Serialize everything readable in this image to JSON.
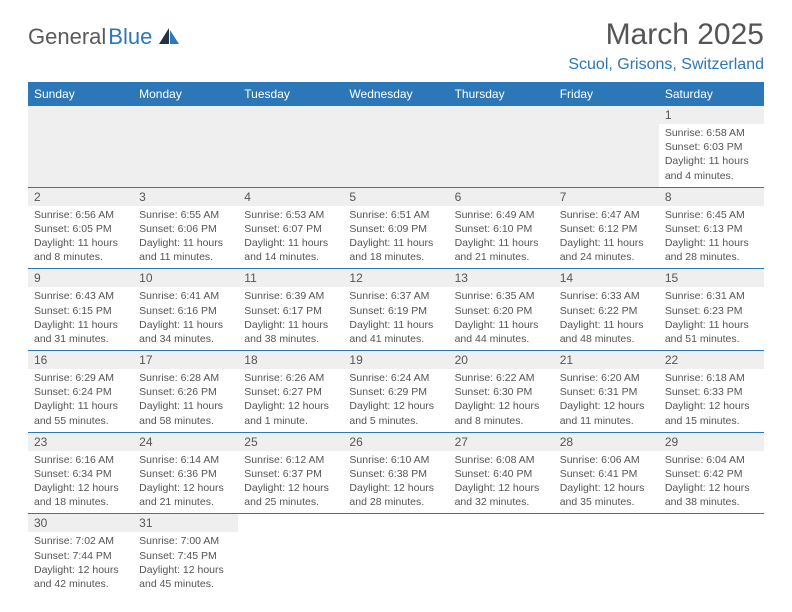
{
  "logo": {
    "text1": "General",
    "text2": "Blue"
  },
  "title": "March 2025",
  "location": "Scuol, Grisons, Switzerland",
  "colors": {
    "brand": "#2c77b8",
    "header_bg": "#2c77b8",
    "header_fg": "#ffffff",
    "daynum_bg": "#efefef",
    "text": "#555555",
    "border": "#2c77b8"
  },
  "weekdays": [
    "Sunday",
    "Monday",
    "Tuesday",
    "Wednesday",
    "Thursday",
    "Friday",
    "Saturday"
  ],
  "weeks": [
    [
      null,
      null,
      null,
      null,
      null,
      null,
      {
        "n": "1",
        "sr": "6:58 AM",
        "ss": "6:03 PM",
        "dl": "11 hours and 4 minutes."
      }
    ],
    [
      {
        "n": "2",
        "sr": "6:56 AM",
        "ss": "6:05 PM",
        "dl": "11 hours and 8 minutes."
      },
      {
        "n": "3",
        "sr": "6:55 AM",
        "ss": "6:06 PM",
        "dl": "11 hours and 11 minutes."
      },
      {
        "n": "4",
        "sr": "6:53 AM",
        "ss": "6:07 PM",
        "dl": "11 hours and 14 minutes."
      },
      {
        "n": "5",
        "sr": "6:51 AM",
        "ss": "6:09 PM",
        "dl": "11 hours and 18 minutes."
      },
      {
        "n": "6",
        "sr": "6:49 AM",
        "ss": "6:10 PM",
        "dl": "11 hours and 21 minutes."
      },
      {
        "n": "7",
        "sr": "6:47 AM",
        "ss": "6:12 PM",
        "dl": "11 hours and 24 minutes."
      },
      {
        "n": "8",
        "sr": "6:45 AM",
        "ss": "6:13 PM",
        "dl": "11 hours and 28 minutes."
      }
    ],
    [
      {
        "n": "9",
        "sr": "6:43 AM",
        "ss": "6:15 PM",
        "dl": "11 hours and 31 minutes."
      },
      {
        "n": "10",
        "sr": "6:41 AM",
        "ss": "6:16 PM",
        "dl": "11 hours and 34 minutes."
      },
      {
        "n": "11",
        "sr": "6:39 AM",
        "ss": "6:17 PM",
        "dl": "11 hours and 38 minutes."
      },
      {
        "n": "12",
        "sr": "6:37 AM",
        "ss": "6:19 PM",
        "dl": "11 hours and 41 minutes."
      },
      {
        "n": "13",
        "sr": "6:35 AM",
        "ss": "6:20 PM",
        "dl": "11 hours and 44 minutes."
      },
      {
        "n": "14",
        "sr": "6:33 AM",
        "ss": "6:22 PM",
        "dl": "11 hours and 48 minutes."
      },
      {
        "n": "15",
        "sr": "6:31 AM",
        "ss": "6:23 PM",
        "dl": "11 hours and 51 minutes."
      }
    ],
    [
      {
        "n": "16",
        "sr": "6:29 AM",
        "ss": "6:24 PM",
        "dl": "11 hours and 55 minutes."
      },
      {
        "n": "17",
        "sr": "6:28 AM",
        "ss": "6:26 PM",
        "dl": "11 hours and 58 minutes."
      },
      {
        "n": "18",
        "sr": "6:26 AM",
        "ss": "6:27 PM",
        "dl": "12 hours and 1 minute."
      },
      {
        "n": "19",
        "sr": "6:24 AM",
        "ss": "6:29 PM",
        "dl": "12 hours and 5 minutes."
      },
      {
        "n": "20",
        "sr": "6:22 AM",
        "ss": "6:30 PM",
        "dl": "12 hours and 8 minutes."
      },
      {
        "n": "21",
        "sr": "6:20 AM",
        "ss": "6:31 PM",
        "dl": "12 hours and 11 minutes."
      },
      {
        "n": "22",
        "sr": "6:18 AM",
        "ss": "6:33 PM",
        "dl": "12 hours and 15 minutes."
      }
    ],
    [
      {
        "n": "23",
        "sr": "6:16 AM",
        "ss": "6:34 PM",
        "dl": "12 hours and 18 minutes."
      },
      {
        "n": "24",
        "sr": "6:14 AM",
        "ss": "6:36 PM",
        "dl": "12 hours and 21 minutes."
      },
      {
        "n": "25",
        "sr": "6:12 AM",
        "ss": "6:37 PM",
        "dl": "12 hours and 25 minutes."
      },
      {
        "n": "26",
        "sr": "6:10 AM",
        "ss": "6:38 PM",
        "dl": "12 hours and 28 minutes."
      },
      {
        "n": "27",
        "sr": "6:08 AM",
        "ss": "6:40 PM",
        "dl": "12 hours and 32 minutes."
      },
      {
        "n": "28",
        "sr": "6:06 AM",
        "ss": "6:41 PM",
        "dl": "12 hours and 35 minutes."
      },
      {
        "n": "29",
        "sr": "6:04 AM",
        "ss": "6:42 PM",
        "dl": "12 hours and 38 minutes."
      }
    ],
    [
      {
        "n": "30",
        "sr": "7:02 AM",
        "ss": "7:44 PM",
        "dl": "12 hours and 42 minutes."
      },
      {
        "n": "31",
        "sr": "7:00 AM",
        "ss": "7:45 PM",
        "dl": "12 hours and 45 minutes."
      },
      null,
      null,
      null,
      null,
      null
    ]
  ]
}
